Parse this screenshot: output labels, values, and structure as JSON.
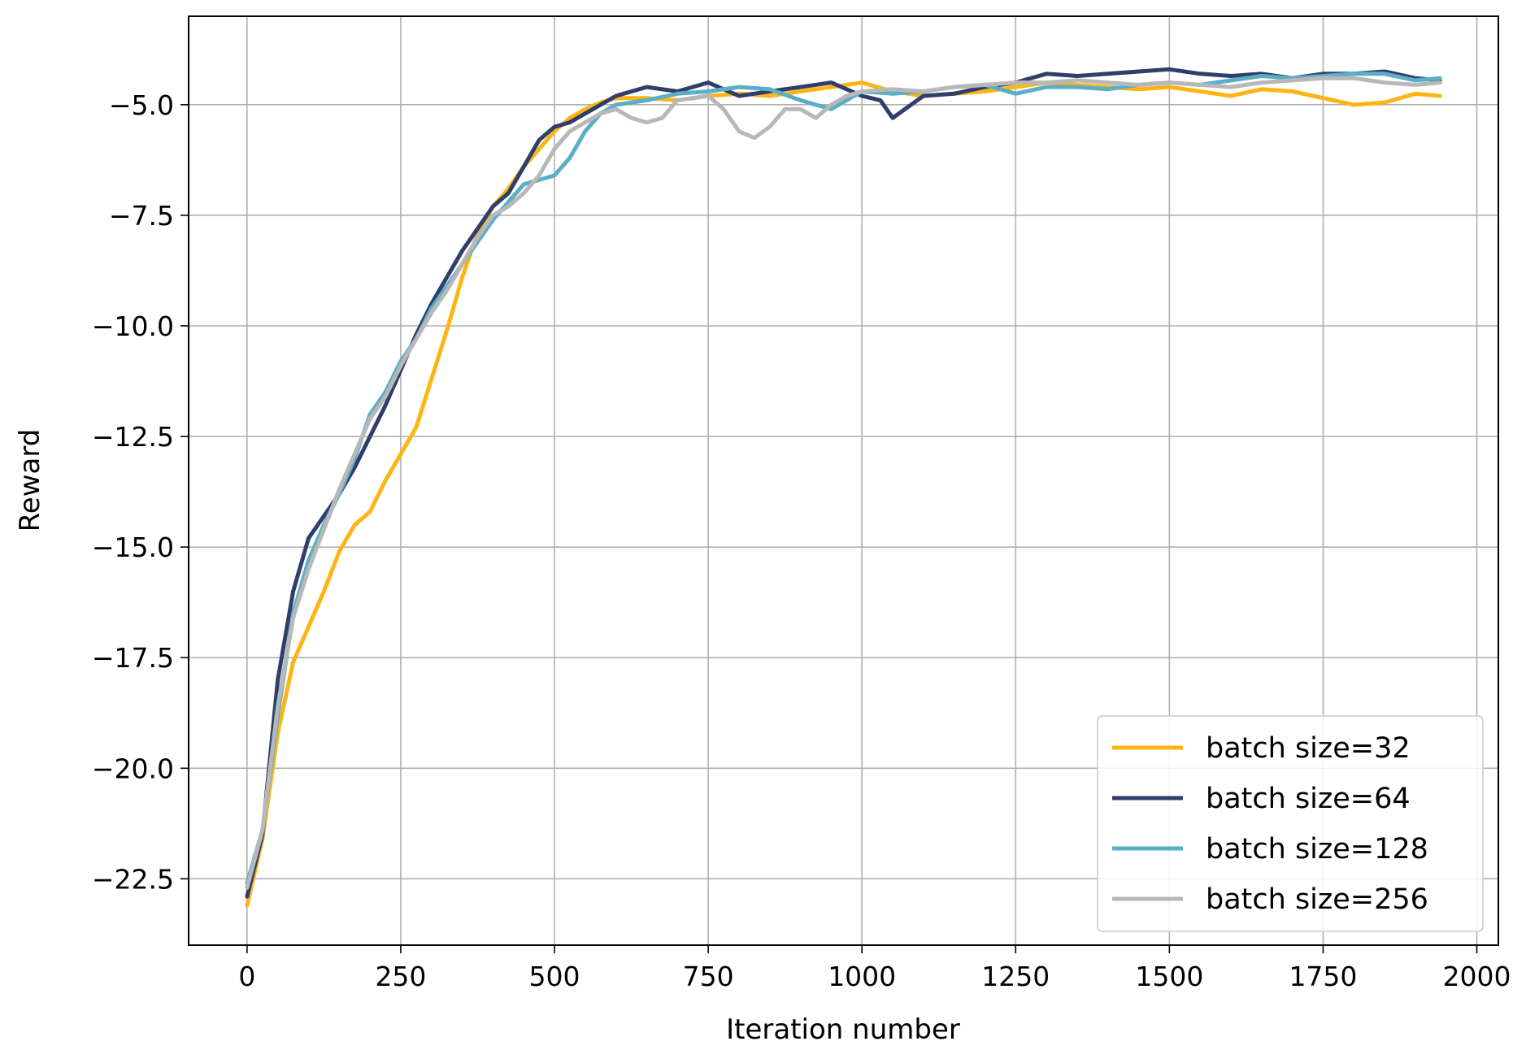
{
  "chart_data": {
    "type": "line",
    "title": "",
    "xlabel": "Iteration number",
    "ylabel": "Reward",
    "xlim": [
      -95,
      2035
    ],
    "ylim": [
      -24.0,
      -3.0
    ],
    "xticks": [
      0,
      250,
      500,
      750,
      1000,
      1250,
      1500,
      1750,
      2000
    ],
    "xtick_labels": [
      "0",
      "250",
      "500",
      "750",
      "1000",
      "1250",
      "1500",
      "1750",
      "2000"
    ],
    "yticks": [
      -22.5,
      -20.0,
      -17.5,
      -15.0,
      -12.5,
      -10.0,
      -7.5,
      -5.0
    ],
    "ytick_labels": [
      "−22.5",
      "−20.0",
      "−17.5",
      "−15.0",
      "−12.5",
      "−10.0",
      "−7.5",
      "−5.0"
    ],
    "grid": true,
    "legend_position": "lower-right",
    "series": [
      {
        "name": "batch size=32",
        "color": "#FDB515",
        "x": [
          0,
          25,
          50,
          75,
          100,
          125,
          150,
          175,
          200,
          225,
          250,
          275,
          300,
          325,
          350,
          375,
          400,
          425,
          450,
          475,
          500,
          525,
          550,
          575,
          600,
          650,
          700,
          750,
          800,
          850,
          900,
          950,
          1000,
          1050,
          1100,
          1150,
          1200,
          1250,
          1300,
          1350,
          1400,
          1450,
          1500,
          1550,
          1600,
          1650,
          1700,
          1750,
          1800,
          1850,
          1900,
          1940
        ],
        "values": [
          -23.1,
          -21.6,
          -19.2,
          -17.6,
          -16.8,
          -16.0,
          -15.1,
          -14.5,
          -14.2,
          -13.5,
          -12.9,
          -12.3,
          -11.2,
          -10.1,
          -8.9,
          -7.9,
          -7.3,
          -6.9,
          -6.4,
          -6.0,
          -5.6,
          -5.3,
          -5.1,
          -4.95,
          -4.85,
          -4.85,
          -4.9,
          -4.8,
          -4.75,
          -4.8,
          -4.7,
          -4.6,
          -4.5,
          -4.7,
          -4.8,
          -4.75,
          -4.7,
          -4.6,
          -4.5,
          -4.55,
          -4.6,
          -4.65,
          -4.6,
          -4.7,
          -4.8,
          -4.65,
          -4.7,
          -4.85,
          -5.0,
          -4.95,
          -4.75,
          -4.8
        ]
      },
      {
        "name": "batch size=64",
        "color": "#2F3E6B",
        "x": [
          0,
          25,
          50,
          75,
          100,
          125,
          150,
          175,
          200,
          225,
          250,
          275,
          300,
          325,
          350,
          375,
          400,
          425,
          450,
          475,
          500,
          525,
          550,
          575,
          600,
          650,
          700,
          750,
          800,
          850,
          900,
          950,
          1000,
          1030,
          1050,
          1100,
          1150,
          1200,
          1250,
          1300,
          1350,
          1400,
          1450,
          1500,
          1550,
          1600,
          1650,
          1700,
          1750,
          1800,
          1850,
          1900,
          1940
        ],
        "values": [
          -22.9,
          -21.5,
          -18.0,
          -16.0,
          -14.8,
          -14.3,
          -13.8,
          -13.2,
          -12.5,
          -11.8,
          -11.0,
          -10.2,
          -9.5,
          -8.9,
          -8.3,
          -7.8,
          -7.3,
          -7.0,
          -6.4,
          -5.8,
          -5.5,
          -5.4,
          -5.2,
          -5.0,
          -4.8,
          -4.6,
          -4.7,
          -4.5,
          -4.8,
          -4.7,
          -4.6,
          -4.5,
          -4.8,
          -4.9,
          -5.3,
          -4.8,
          -4.75,
          -4.6,
          -4.5,
          -4.3,
          -4.35,
          -4.3,
          -4.25,
          -4.2,
          -4.3,
          -4.35,
          -4.3,
          -4.4,
          -4.3,
          -4.3,
          -4.25,
          -4.4,
          -4.45
        ]
      },
      {
        "name": "batch size=128",
        "color": "#5AAFC7",
        "x": [
          0,
          25,
          50,
          75,
          100,
          125,
          150,
          175,
          200,
          225,
          250,
          275,
          300,
          325,
          350,
          375,
          400,
          425,
          450,
          475,
          500,
          525,
          550,
          575,
          600,
          650,
          700,
          750,
          800,
          850,
          900,
          950,
          1000,
          1050,
          1100,
          1150,
          1200,
          1250,
          1300,
          1350,
          1400,
          1450,
          1500,
          1550,
          1600,
          1650,
          1700,
          1750,
          1800,
          1850,
          1900,
          1940
        ],
        "values": [
          -22.6,
          -21.4,
          -18.8,
          -16.5,
          -15.3,
          -14.5,
          -13.8,
          -13.0,
          -12.0,
          -11.5,
          -10.8,
          -10.3,
          -9.6,
          -9.1,
          -8.6,
          -8.1,
          -7.6,
          -7.2,
          -6.8,
          -6.7,
          -6.6,
          -6.2,
          -5.6,
          -5.2,
          -5.0,
          -4.9,
          -4.75,
          -4.7,
          -4.6,
          -4.65,
          -4.9,
          -5.1,
          -4.7,
          -4.75,
          -4.7,
          -4.6,
          -4.55,
          -4.75,
          -4.6,
          -4.6,
          -4.65,
          -4.55,
          -4.5,
          -4.55,
          -4.45,
          -4.35,
          -4.4,
          -4.35,
          -4.3,
          -4.3,
          -4.45,
          -4.4
        ]
      },
      {
        "name": "batch size=256",
        "color": "#B8B8B8",
        "x": [
          0,
          25,
          50,
          75,
          100,
          125,
          150,
          175,
          200,
          225,
          250,
          275,
          300,
          325,
          350,
          375,
          400,
          425,
          450,
          475,
          500,
          525,
          550,
          575,
          600,
          625,
          650,
          675,
          700,
          750,
          775,
          800,
          825,
          850,
          875,
          900,
          925,
          950,
          975,
          1000,
          1050,
          1100,
          1150,
          1200,
          1250,
          1300,
          1350,
          1400,
          1450,
          1500,
          1550,
          1600,
          1650,
          1700,
          1750,
          1800,
          1850,
          1900,
          1940
        ],
        "values": [
          -22.7,
          -21.4,
          -18.6,
          -16.6,
          -15.5,
          -14.6,
          -13.7,
          -12.9,
          -12.1,
          -11.6,
          -10.9,
          -10.3,
          -9.7,
          -9.2,
          -8.6,
          -8.0,
          -7.5,
          -7.3,
          -7.0,
          -6.6,
          -6.0,
          -5.6,
          -5.4,
          -5.2,
          -5.1,
          -5.3,
          -5.4,
          -5.3,
          -4.9,
          -4.8,
          -5.1,
          -5.6,
          -5.75,
          -5.5,
          -5.1,
          -5.1,
          -5.3,
          -5.0,
          -4.8,
          -4.7,
          -4.65,
          -4.7,
          -4.6,
          -4.55,
          -4.5,
          -4.5,
          -4.45,
          -4.5,
          -4.55,
          -4.5,
          -4.55,
          -4.6,
          -4.5,
          -4.45,
          -4.4,
          -4.4,
          -4.5,
          -4.55,
          -4.5
        ]
      }
    ]
  }
}
